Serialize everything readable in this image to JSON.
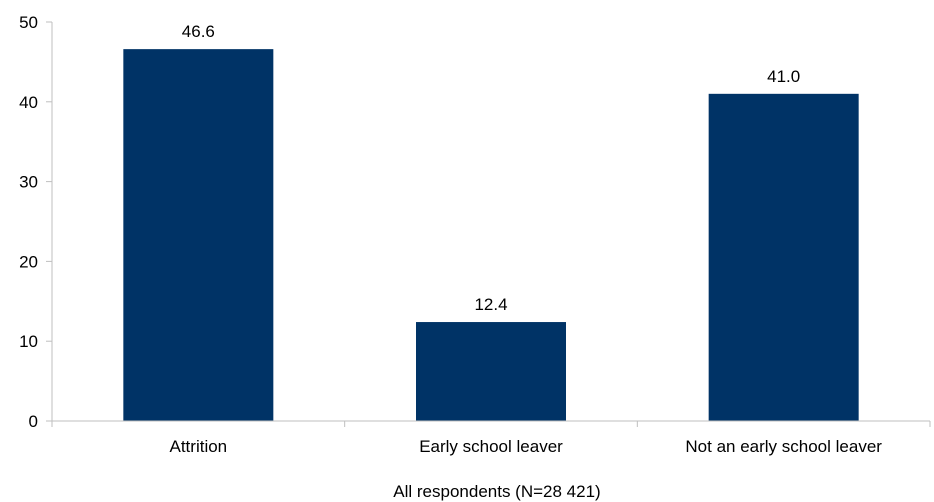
{
  "chart_data": {
    "type": "bar",
    "categories": [
      "Attrition",
      "Early school leaver",
      "Not an early school leaver"
    ],
    "values": [
      46.6,
      12.4,
      41.0
    ],
    "data_labels": [
      "46.6",
      "12.4",
      "41.0"
    ],
    "title": "",
    "xlabel": "All respondents (N=28 421)",
    "ylabel": "",
    "ylim": [
      0,
      50
    ],
    "yticks": [
      0,
      10,
      20,
      30,
      40,
      50
    ],
    "grid": false,
    "legend": "none",
    "bar_color": "#003366",
    "axis_color": "#bfbfbf"
  }
}
